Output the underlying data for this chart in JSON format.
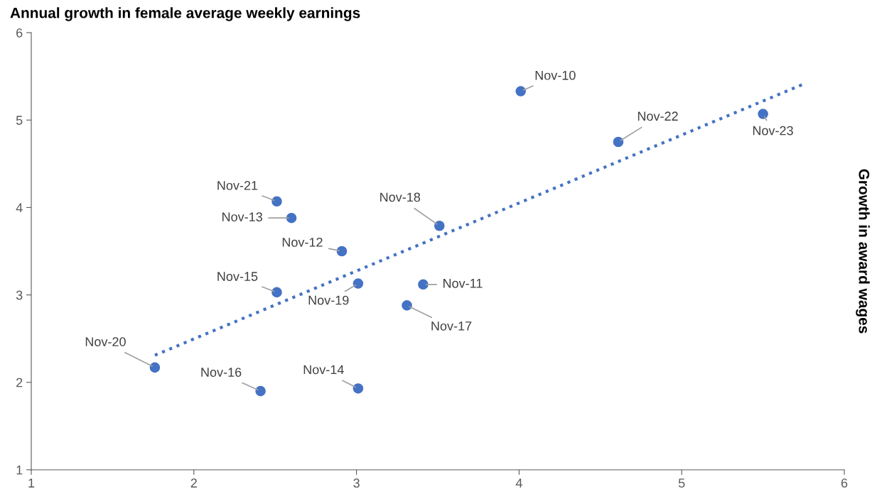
{
  "chart_data": {
    "type": "scatter",
    "ylabel": "Annual growth in female average weekly earnings",
    "annotations": [
      "Growth in award wages"
    ],
    "xlim": [
      1,
      6
    ],
    "ylim": [
      1,
      6
    ],
    "xticks": [
      1,
      2,
      3,
      4,
      5,
      6
    ],
    "yticks": [
      1,
      2,
      3,
      4,
      5,
      6
    ],
    "grid": false,
    "legend": false,
    "marker": "circle",
    "series": [
      {
        "color": "#4472c4",
        "x": [
          4.01,
          3.41,
          2.91,
          2.6,
          3.01,
          2.51,
          2.41,
          3.31,
          3.51,
          3.01,
          1.76,
          2.51,
          4.61,
          5.5
        ],
        "values": [
          5.33,
          3.12,
          3.5,
          3.88,
          1.93,
          3.03,
          1.9,
          2.88,
          3.79,
          3.13,
          2.17,
          4.07,
          4.75,
          5.07
        ],
        "value_labels": [
          "Nov-10",
          "Nov-11",
          "Nov-12",
          "Nov-13",
          "Nov-14",
          "Nov-15",
          "Nov-16",
          "Nov-17",
          "Nov-18",
          "Nov-19",
          "Nov-20",
          "Nov-21",
          "Nov-22",
          "Nov-23"
        ]
      },
      {
        "type": "line",
        "color": "#4472c4",
        "line_style": "dotted",
        "marker": "none",
        "x": [
          1.76,
          5.76
        ],
        "values": [
          2.31,
          5.42
        ]
      }
    ]
  }
}
